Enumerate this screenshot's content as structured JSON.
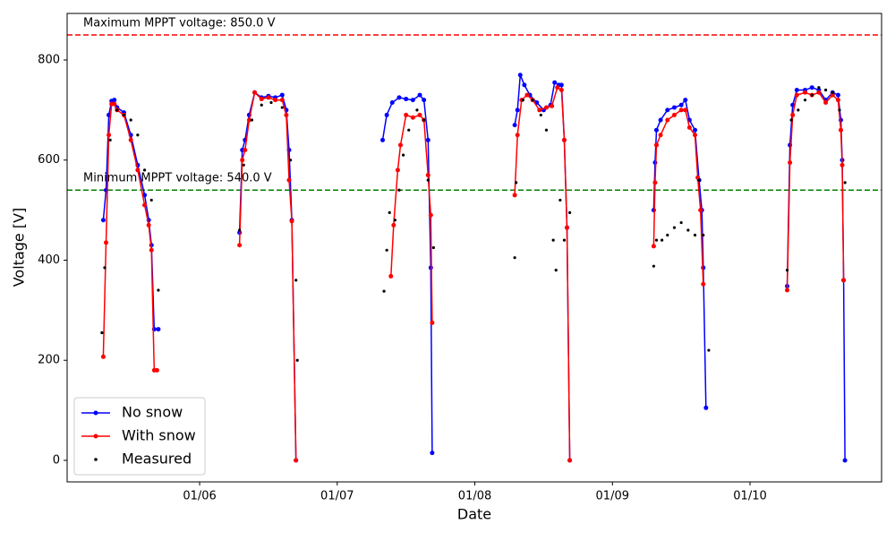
{
  "chart_data": {
    "type": "line",
    "xlabel": "Date",
    "ylabel": "Voltage [V]",
    "xlim": [
      5.037,
      10.956
    ],
    "ylim": [
      -43,
      893
    ],
    "xticks": [
      {
        "value": 6,
        "label": "01/06"
      },
      {
        "value": 7,
        "label": "01/07"
      },
      {
        "value": 8,
        "label": "01/08"
      },
      {
        "value": 9,
        "label": "01/09"
      },
      {
        "value": 10,
        "label": "01/10"
      }
    ],
    "yticks": [
      0,
      200,
      400,
      600,
      800
    ],
    "legend": "lower left",
    "reference_lines": [
      {
        "value": 850,
        "color": "#ff0000",
        "label": "Maximum MPPT voltage: 850.0 V"
      },
      {
        "value": 540,
        "color": "#008000",
        "label": "Minimum MPPT voltage: 540.0 V"
      }
    ],
    "series": [
      {
        "name": "No snow",
        "type": "line",
        "color": "#0000ff",
        "x": [
          5.3,
          5.32,
          5.34,
          5.36,
          5.38,
          5.4,
          5.45,
          5.5,
          5.55,
          5.6,
          5.63,
          5.65,
          5.67,
          5.7,
          null,
          6.29,
          6.31,
          6.33,
          6.36,
          6.4,
          6.45,
          6.5,
          6.55,
          6.6,
          6.63,
          6.65,
          6.67,
          6.7,
          null,
          7.33,
          7.36,
          7.4,
          7.45,
          7.5,
          7.55,
          7.6,
          7.63,
          7.66,
          7.68,
          7.69,
          null,
          8.29,
          8.31,
          8.33,
          8.36,
          8.4,
          8.45,
          8.5,
          8.55,
          8.58,
          8.61,
          8.63,
          8.65,
          8.67,
          8.69,
          null,
          9.3,
          9.31,
          9.32,
          9.35,
          9.4,
          9.45,
          9.5,
          9.53,
          9.56,
          9.6,
          9.63,
          9.65,
          9.66,
          9.68,
          null,
          10.27,
          10.29,
          10.31,
          10.34,
          10.4,
          10.45,
          10.5,
          10.55,
          10.6,
          10.64,
          10.66,
          10.67,
          10.68,
          10.69
        ],
        "values": [
          480,
          540,
          690,
          718,
          720,
          705,
          695,
          650,
          590,
          530,
          480,
          430,
          262,
          262,
          null,
          455,
          620,
          640,
          690,
          735,
          725,
          728,
          725,
          730,
          700,
          620,
          480,
          0,
          null,
          640,
          690,
          715,
          725,
          722,
          720,
          730,
          720,
          640,
          385,
          15,
          null,
          670,
          700,
          770,
          750,
          730,
          715,
          700,
          710,
          755,
          750,
          750,
          640,
          465,
          0,
          null,
          500,
          595,
          660,
          680,
          700,
          705,
          710,
          720,
          680,
          660,
          560,
          500,
          385,
          105,
          null,
          348,
          630,
          710,
          740,
          740,
          745,
          740,
          720,
          735,
          730,
          680,
          600,
          360,
          0
        ]
      },
      {
        "name": "With snow",
        "type": "line",
        "color": "#ff0000",
        "x": [
          5.3,
          5.32,
          5.34,
          5.36,
          5.38,
          5.4,
          5.45,
          5.5,
          5.55,
          5.6,
          5.63,
          5.65,
          5.67,
          5.69,
          null,
          6.29,
          6.31,
          6.33,
          6.36,
          6.4,
          6.45,
          6.5,
          6.55,
          6.6,
          6.63,
          6.65,
          6.67,
          6.7,
          null,
          7.39,
          7.41,
          7.44,
          7.46,
          7.5,
          7.55,
          7.6,
          7.63,
          7.66,
          7.68,
          7.69,
          null,
          8.29,
          8.31,
          8.34,
          8.38,
          8.42,
          8.47,
          8.52,
          8.56,
          8.6,
          8.63,
          8.65,
          8.67,
          8.69,
          null,
          9.3,
          9.31,
          9.32,
          9.35,
          9.4,
          9.45,
          9.5,
          9.53,
          9.56,
          9.6,
          9.62,
          9.64,
          9.66,
          null,
          10.27,
          10.29,
          10.31,
          10.34,
          10.4,
          10.45,
          10.5,
          10.55,
          10.6,
          10.64,
          10.66,
          10.67,
          10.68
        ],
        "values": [
          207,
          435,
          650,
          712,
          712,
          700,
          690,
          640,
          580,
          510,
          470,
          420,
          180,
          180,
          null,
          430,
          600,
          620,
          680,
          735,
          722,
          725,
          720,
          720,
          690,
          560,
          478,
          0,
          null,
          368,
          470,
          580,
          630,
          690,
          685,
          690,
          680,
          570,
          490,
          275,
          null,
          530,
          650,
          720,
          730,
          720,
          700,
          705,
          708,
          745,
          740,
          640,
          465,
          0,
          null,
          428,
          555,
          630,
          650,
          680,
          690,
          700,
          700,
          665,
          650,
          565,
          500,
          352,
          null,
          340,
          595,
          690,
          730,
          735,
          730,
          735,
          715,
          730,
          720,
          660,
          590,
          360
        ]
      },
      {
        "name": "Measured",
        "type": "scatter",
        "color": "#000000",
        "x": [
          5.29,
          5.31,
          5.35,
          5.4,
          5.45,
          5.5,
          5.55,
          5.6,
          5.65,
          5.7,
          6.29,
          6.32,
          6.38,
          6.45,
          6.52,
          6.6,
          6.66,
          6.7,
          6.71,
          7.34,
          7.36,
          7.38,
          7.42,
          7.45,
          7.48,
          7.52,
          7.58,
          7.63,
          7.66,
          7.7,
          8.29,
          8.3,
          8.35,
          8.42,
          8.48,
          8.52,
          8.57,
          8.59,
          8.62,
          8.65,
          8.69,
          9.3,
          9.32,
          9.36,
          9.4,
          9.45,
          9.5,
          9.55,
          9.6,
          9.63,
          9.66,
          9.7,
          10.27,
          10.3,
          10.35,
          10.4,
          10.45,
          10.5,
          10.55,
          10.6,
          10.65,
          10.69
        ],
        "values": [
          255,
          385,
          640,
          700,
          690,
          680,
          650,
          580,
          520,
          340,
          460,
          590,
          680,
          710,
          715,
          705,
          600,
          360,
          200,
          338,
          420,
          495,
          480,
          540,
          610,
          660,
          700,
          680,
          560,
          425,
          405,
          555,
          720,
          720,
          690,
          660,
          440,
          380,
          520,
          440,
          495,
          388,
          440,
          440,
          450,
          465,
          475,
          460,
          450,
          560,
          450,
          220,
          380,
          680,
          700,
          720,
          730,
          745,
          740,
          735,
          700,
          555
        ]
      }
    ]
  }
}
